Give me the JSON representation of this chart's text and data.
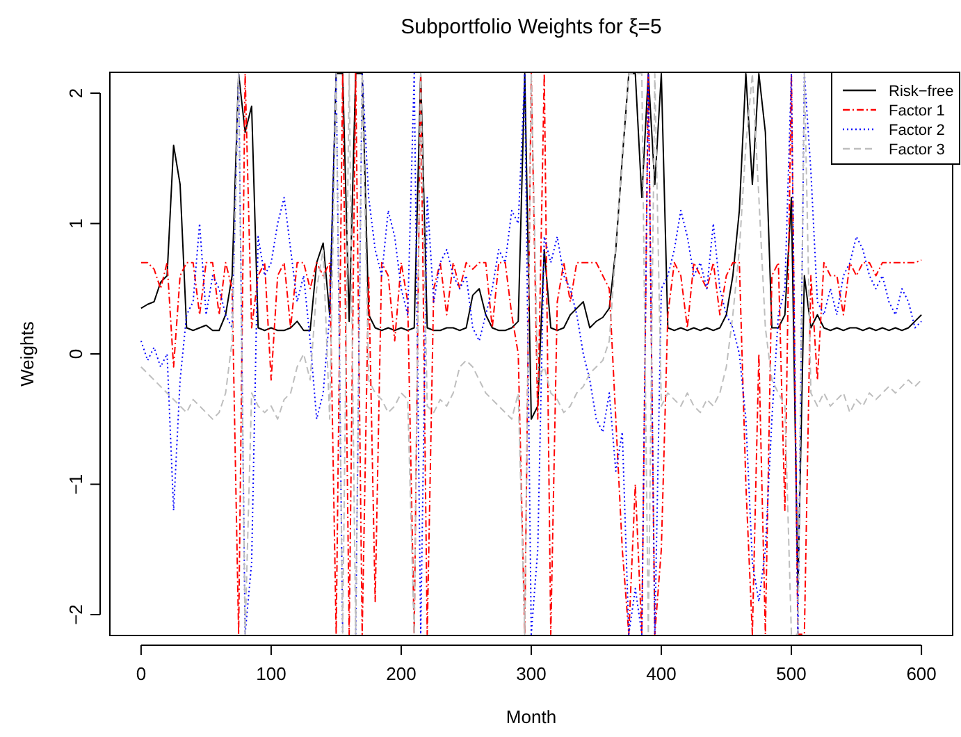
{
  "chart_data": {
    "type": "line",
    "title": "Subportfolio Weights for ξ=5",
    "xlabel": "Month",
    "ylabel": "Weights",
    "x": [
      0,
      5,
      10,
      15,
      20,
      25,
      30,
      35,
      40,
      45,
      50,
      55,
      60,
      65,
      70,
      75,
      80,
      85,
      90,
      95,
      100,
      105,
      110,
      115,
      120,
      125,
      130,
      135,
      140,
      145,
      150,
      155,
      160,
      165,
      170,
      175,
      180,
      185,
      190,
      195,
      200,
      205,
      210,
      215,
      220,
      225,
      230,
      235,
      240,
      245,
      250,
      255,
      260,
      265,
      270,
      275,
      280,
      285,
      290,
      295,
      300,
      305,
      310,
      315,
      320,
      325,
      330,
      335,
      340,
      345,
      350,
      355,
      360,
      365,
      370,
      375,
      380,
      385,
      390,
      395,
      400,
      405,
      410,
      415,
      420,
      425,
      430,
      435,
      440,
      445,
      450,
      455,
      460,
      465,
      470,
      475,
      480,
      485,
      490,
      495,
      500,
      505,
      510,
      515,
      520,
      525,
      530,
      535,
      540,
      545,
      550,
      555,
      560,
      565,
      570,
      575,
      580,
      585,
      590,
      595,
      600
    ],
    "xlim": [
      -24,
      624
    ],
    "xticks": [
      0,
      100,
      200,
      300,
      400,
      500,
      600
    ],
    "ylim": [
      -2.16,
      2.16
    ],
    "yticks": [
      -2,
      -1,
      0,
      1,
      2
    ],
    "legend": "top right",
    "grid": false,
    "series": [
      {
        "name": "Risk−free",
        "color": "#000000",
        "line_style": "solid",
        "values": [
          0.35,
          0.38,
          0.4,
          0.55,
          0.6,
          1.6,
          1.3,
          0.2,
          0.18,
          0.2,
          0.22,
          0.18,
          0.18,
          0.3,
          0.6,
          2.15,
          1.7,
          1.9,
          0.2,
          0.18,
          0.2,
          0.18,
          0.18,
          0.2,
          0.25,
          0.18,
          0.18,
          0.7,
          0.85,
          0.3,
          2.15,
          2.15,
          0.25,
          2.15,
          2.15,
          0.3,
          0.2,
          0.18,
          0.2,
          0.18,
          0.2,
          0.18,
          0.2,
          2.15,
          0.2,
          0.18,
          0.18,
          0.2,
          0.2,
          0.18,
          0.2,
          0.45,
          0.5,
          0.3,
          0.2,
          0.18,
          0.18,
          0.2,
          0.25,
          2.15,
          -0.5,
          -0.4,
          0.8,
          0.2,
          0.18,
          0.2,
          0.3,
          0.35,
          0.4,
          0.2,
          0.25,
          0.28,
          0.35,
          0.8,
          1.5,
          2.15,
          2.15,
          1.2,
          2.15,
          1.3,
          2.15,
          0.2,
          0.18,
          0.2,
          0.18,
          0.2,
          0.18,
          0.2,
          0.18,
          0.2,
          0.3,
          0.6,
          1.1,
          2.15,
          1.3,
          2.15,
          1.7,
          0.2,
          0.2,
          0.3,
          1.2,
          -1.8,
          0.6,
          0.2,
          0.3,
          0.2,
          0.18,
          0.2,
          0.18,
          0.2,
          0.2,
          0.18,
          0.2,
          0.18,
          0.2,
          0.18,
          0.2,
          0.18,
          0.2,
          0.25,
          0.3
        ]
      },
      {
        "name": "Factor 1",
        "color": "#ff0000",
        "line_style": "dashdot",
        "values": [
          0.7,
          0.7,
          0.65,
          0.5,
          0.7,
          -0.1,
          0.6,
          0.7,
          0.7,
          0.3,
          0.7,
          0.7,
          0.3,
          0.7,
          0.5,
          -2.15,
          2.15,
          0.2,
          0.6,
          0.7,
          -0.2,
          0.6,
          0.7,
          0.2,
          0.7,
          0.7,
          0.5,
          0.7,
          0.6,
          0.7,
          -2.15,
          2.15,
          -2.15,
          2.15,
          -2.15,
          0.6,
          -1.9,
          0.7,
          0.6,
          0.1,
          0.7,
          0.4,
          -2.15,
          2.15,
          -2.15,
          0.5,
          0.7,
          0.3,
          0.7,
          0.5,
          0.7,
          0.65,
          0.7,
          0.7,
          0.2,
          0.7,
          0.7,
          0.3,
          0.0,
          -2.15,
          2.15,
          -0.5,
          2.15,
          -2.15,
          0.4,
          0.7,
          0.4,
          0.7,
          0.7,
          0.7,
          0.7,
          0.6,
          0.5,
          -0.5,
          -1.5,
          -2.15,
          -1.0,
          -2.15,
          2.15,
          -2.15,
          -1.5,
          0.3,
          0.7,
          0.6,
          0.2,
          0.7,
          0.6,
          0.5,
          0.7,
          0.3,
          0.6,
          0.7,
          0.7,
          -1.0,
          -2.15,
          0.0,
          -2.15,
          0.6,
          0.7,
          -1.2,
          2.15,
          -2.15,
          -2.15,
          0.6,
          -0.2,
          0.7,
          0.6,
          0.6,
          0.3,
          0.7,
          0.6,
          0.7,
          0.7,
          0.6,
          0.7,
          0.7,
          0.7,
          0.7,
          0.7,
          0.7,
          0.72
        ]
      },
      {
        "name": "Factor 2",
        "color": "#0000ff",
        "line_style": "dotted",
        "values": [
          0.1,
          -0.05,
          0.05,
          -0.1,
          0.0,
          -1.2,
          -0.2,
          0.3,
          0.4,
          1.0,
          0.3,
          0.6,
          0.5,
          0.3,
          0.2,
          2.15,
          -2.15,
          -1.6,
          0.9,
          0.6,
          0.7,
          1.0,
          1.2,
          0.8,
          0.4,
          0.6,
          0.1,
          -0.5,
          -0.3,
          0.3,
          2.15,
          -2.15,
          null,
          -2.15,
          2.15,
          1.2,
          0.8,
          0.6,
          1.1,
          0.9,
          0.5,
          0.3,
          2.15,
          -2.15,
          1.2,
          0.4,
          0.7,
          0.8,
          0.6,
          0.5,
          0.6,
          0.2,
          0.1,
          0.3,
          0.5,
          0.8,
          0.7,
          1.1,
          1.0,
          2.15,
          -2.15,
          -1.5,
          0.9,
          0.7,
          0.9,
          0.6,
          0.5,
          0.3,
          0.0,
          -0.2,
          -0.5,
          -0.6,
          -0.3,
          -0.9,
          -0.6,
          -2.15,
          -1.8,
          -2.15,
          2.15,
          -2.15,
          0.5,
          0.6,
          0.8,
          1.1,
          0.9,
          0.6,
          0.7,
          0.5,
          1.0,
          0.5,
          0.3,
          0.2,
          0.0,
          -0.5,
          -1.6,
          -1.9,
          -1.5,
          -0.5,
          0.3,
          0.5,
          2.15,
          -2.15,
          2.15,
          1.4,
          0.4,
          0.3,
          0.5,
          0.3,
          0.6,
          0.7,
          0.9,
          0.8,
          0.6,
          0.5,
          0.6,
          0.4,
          0.3,
          0.5,
          0.4,
          0.2,
          0.25
        ]
      },
      {
        "name": "Factor 3",
        "color": "#bebebe",
        "line_style": "dashed",
        "values": [
          -0.1,
          -0.15,
          -0.2,
          -0.25,
          -0.3,
          -0.35,
          -0.4,
          -0.45,
          -0.35,
          -0.4,
          -0.45,
          -0.5,
          -0.45,
          -0.3,
          0.1,
          2.15,
          -2.15,
          -0.3,
          -0.4,
          -0.45,
          -0.4,
          -0.5,
          -0.35,
          -0.3,
          -0.1,
          0.0,
          -0.2,
          0.5,
          0.8,
          -0.5,
          2.15,
          -2.15,
          2.15,
          -2.15,
          2.15,
          -0.2,
          -0.3,
          -0.35,
          -0.45,
          -0.4,
          -0.3,
          -0.35,
          -2.15,
          2.15,
          -0.4,
          -0.45,
          -0.35,
          -0.4,
          -0.3,
          -0.1,
          -0.05,
          -0.1,
          -0.2,
          -0.3,
          -0.35,
          -0.4,
          -0.45,
          -0.5,
          -0.3,
          -2.15,
          2.15,
          -0.2,
          -0.1,
          -0.3,
          -0.35,
          -0.45,
          -0.4,
          -0.3,
          -0.25,
          -0.15,
          -0.1,
          -0.05,
          0.1,
          0.8,
          1.5,
          2.15,
          2.15,
          2.15,
          -2.15,
          2.15,
          -0.4,
          -0.3,
          -0.35,
          -0.4,
          -0.3,
          -0.4,
          -0.45,
          -0.35,
          -0.4,
          -0.3,
          -0.1,
          0.3,
          0.8,
          1.6,
          2.15,
          1.2,
          0.2,
          -0.2,
          -0.3,
          -0.4,
          -2.15,
          -2.15,
          2.15,
          -0.3,
          -0.4,
          -0.3,
          -0.4,
          -0.35,
          -0.3,
          -0.45,
          -0.35,
          -0.4,
          -0.3,
          -0.35,
          -0.3,
          -0.25,
          -0.3,
          -0.25,
          -0.2,
          -0.25,
          -0.2
        ]
      }
    ]
  }
}
